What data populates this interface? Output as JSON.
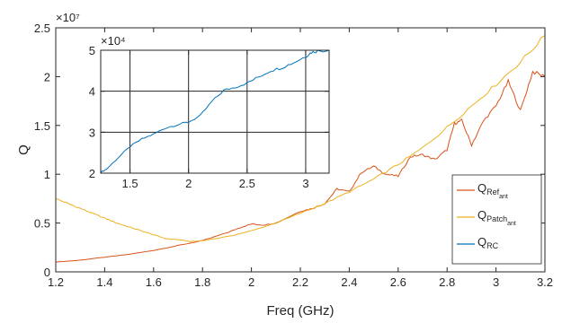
{
  "chart_data": [
    {
      "type": "line",
      "xlabel": "Freq (GHz)",
      "ylabel": "Q",
      "xlim": [
        1.2,
        3.2
      ],
      "ylim": [
        0,
        25000000
      ],
      "y_exponent_label": "×10⁷",
      "x_ticks": [
        1.2,
        1.4,
        1.6,
        1.8,
        2.0,
        2.2,
        2.4,
        2.6,
        2.8,
        3.0,
        3.2
      ],
      "x_tick_labels": [
        "1.2",
        "1.4",
        "1.6",
        "1.8",
        "2",
        "2.2",
        "2.4",
        "2.6",
        "2.8",
        "3",
        "3.2"
      ],
      "y_ticks": [
        0,
        5000000,
        10000000,
        15000000,
        20000000,
        25000000
      ],
      "y_tick_labels": [
        "0",
        "0.5",
        "1",
        "1.5",
        "2",
        "2.5"
      ],
      "grid": false,
      "legend_position": "bottom-right",
      "series": [
        {
          "name": "Q_Ref_ant",
          "legend_main": "Q",
          "legend_sub": "Ref",
          "legend_subsub": "ant",
          "color": "#D95319",
          "x": [
            1.2,
            1.3,
            1.4,
            1.5,
            1.6,
            1.7,
            1.8,
            1.9,
            1.95,
            2.0,
            2.05,
            2.1,
            2.2,
            2.25,
            2.3,
            2.35,
            2.4,
            2.45,
            2.5,
            2.55,
            2.6,
            2.65,
            2.7,
            2.75,
            2.8,
            2.83,
            2.86,
            2.9,
            2.95,
            3.0,
            3.05,
            3.1,
            3.15,
            3.2
          ],
          "y": [
            1000000,
            1200000,
            1500000,
            1800000,
            2200000,
            2700000,
            3200000,
            4000000,
            4500000,
            4900000,
            4800000,
            5000000,
            6200000,
            6500000,
            7000000,
            8500000,
            8200000,
            10200000,
            10800000,
            10000000,
            9800000,
            11800000,
            12000000,
            11500000,
            12500000,
            15200000,
            15500000,
            13000000,
            15500000,
            17000000,
            19500000,
            16500000,
            20500000,
            20000000
          ]
        },
        {
          "name": "Q_Patch_ant",
          "legend_main": "Q",
          "legend_sub": "Patch",
          "legend_subsub": "ant",
          "color": "#EDB120",
          "x": [
            1.2,
            1.25,
            1.3,
            1.35,
            1.4,
            1.45,
            1.5,
            1.55,
            1.6,
            1.65,
            1.7,
            1.75,
            1.8,
            1.9,
            2.0,
            2.1,
            2.2,
            2.3,
            2.4,
            2.5,
            2.6,
            2.7,
            2.8,
            2.9,
            3.0,
            3.1,
            3.2
          ],
          "y": [
            7500000,
            7000000,
            6500000,
            6000000,
            5500000,
            5000000,
            4600000,
            4200000,
            3800000,
            3400000,
            3300000,
            3100000,
            3200000,
            3600000,
            4200000,
            5000000,
            6000000,
            7000000,
            8200000,
            9500000,
            11000000,
            12700000,
            14800000,
            17000000,
            19200000,
            21500000,
            24200000
          ]
        }
      ],
      "inset_legend_series": {
        "name": "Q_RC",
        "legend_main": "Q",
        "legend_sub": "RC",
        "color": "#0072BD"
      }
    },
    {
      "type": "line",
      "xlim": [
        1.25,
        3.2
      ],
      "ylim": [
        20000,
        50000
      ],
      "y_exponent_label": "×10⁴",
      "x_ticks": [
        1.5,
        2.0,
        2.5,
        3.0
      ],
      "x_tick_labels": [
        "1.5",
        "2",
        "2.5",
        "3"
      ],
      "y_ticks": [
        20000,
        30000,
        40000,
        50000
      ],
      "y_tick_labels": [
        "2",
        "3",
        "4",
        "5"
      ],
      "grid": true,
      "series": [
        {
          "name": "Q_RC",
          "color": "#0072BD",
          "x": [
            1.25,
            1.3,
            1.4,
            1.5,
            1.6,
            1.7,
            1.8,
            1.9,
            2.0,
            2.1,
            2.2,
            2.3,
            2.4,
            2.5,
            2.6,
            2.7,
            2.8,
            2.9,
            3.0,
            3.05,
            3.1,
            3.2
          ],
          "y": [
            20200,
            21000,
            23800,
            26500,
            28300,
            29500,
            31000,
            31800,
            32500,
            34000,
            37500,
            40200,
            41000,
            42000,
            43500,
            45000,
            45800,
            47000,
            48500,
            49500,
            49800,
            50000
          ]
        }
      ]
    }
  ]
}
